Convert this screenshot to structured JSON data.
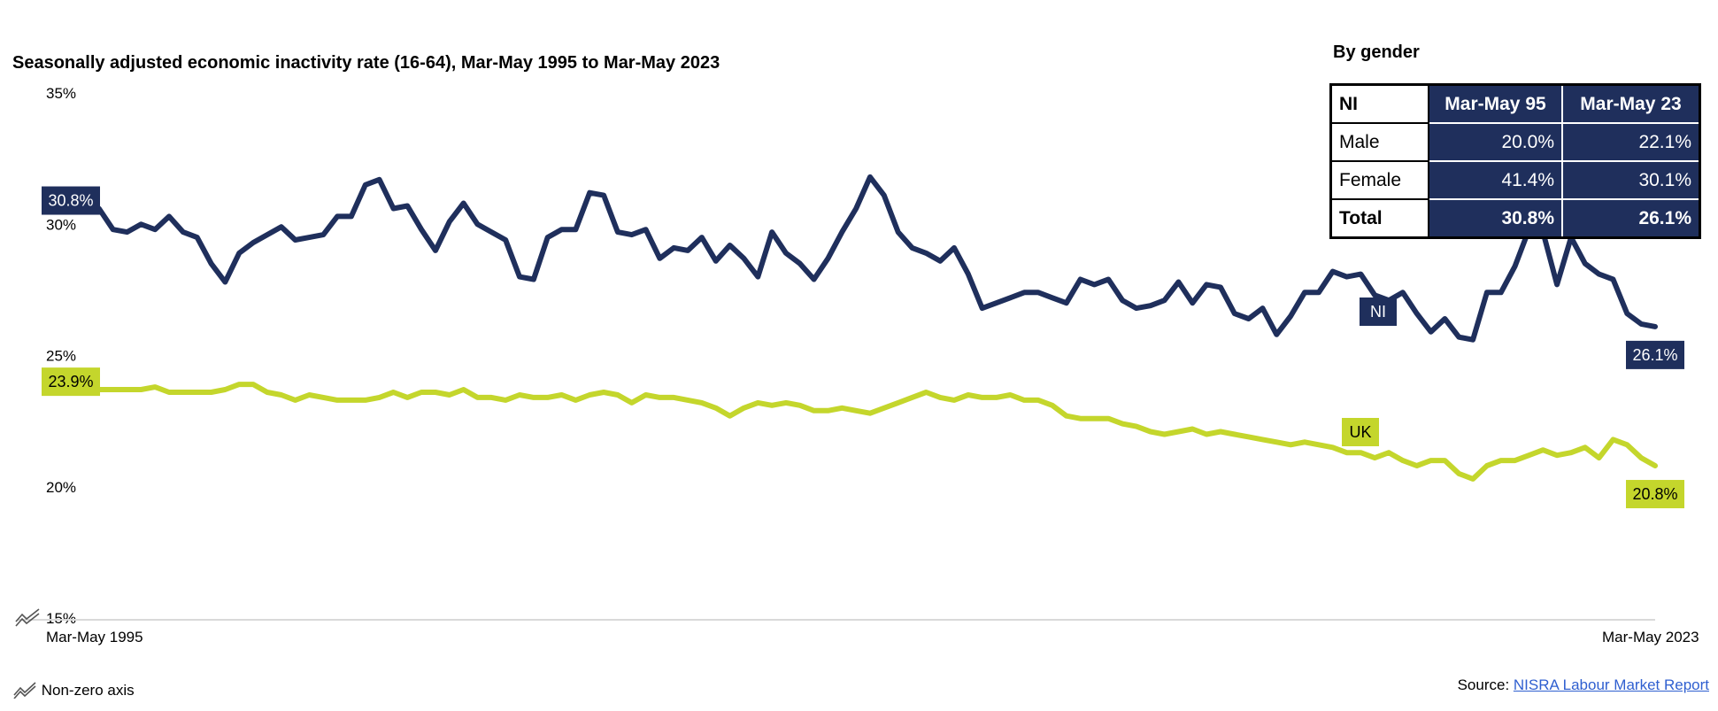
{
  "chart_data": {
    "type": "line",
    "title": "Seasonally adjusted economic inactivity rate (16-64), Mar-May 1995 to Mar-May 2023",
    "x_start_label": "Mar-May 1995",
    "x_end_label": "Mar-May 2023",
    "y_ticks": [
      "15%",
      "20%",
      "25%",
      "30%",
      "35%"
    ],
    "ylim": [
      15,
      35
    ],
    "non_zero_axis_note": "Non-zero axis",
    "colors": {
      "NI": "#1f2f5c",
      "UK": "#c4d62c"
    },
    "series": [
      {
        "name": "NI",
        "start_label": "30.8%",
        "end_label": "26.1%",
        "values": [
          30.8,
          30.6,
          29.8,
          29.7,
          30.0,
          29.8,
          30.3,
          29.7,
          29.5,
          28.5,
          27.8,
          28.9,
          29.3,
          29.6,
          29.9,
          29.4,
          29.5,
          29.6,
          30.3,
          30.3,
          31.5,
          31.7,
          30.6,
          30.7,
          29.8,
          29.0,
          30.1,
          30.8,
          30.0,
          29.7,
          29.4,
          28.0,
          27.9,
          29.5,
          29.8,
          29.8,
          31.2,
          31.1,
          29.7,
          29.6,
          29.8,
          28.7,
          29.1,
          29.0,
          29.5,
          28.6,
          29.2,
          28.7,
          28.0,
          29.7,
          28.9,
          28.5,
          27.9,
          28.7,
          29.7,
          30.6,
          31.8,
          31.1,
          29.7,
          29.1,
          28.9,
          28.6,
          29.1,
          28.1,
          26.8,
          27.0,
          27.2,
          27.4,
          27.4,
          27.2,
          27.0,
          27.9,
          27.7,
          27.9,
          27.1,
          26.8,
          26.9,
          27.1,
          27.8,
          27.0,
          27.7,
          27.6,
          26.6,
          26.4,
          26.8,
          25.8,
          26.5,
          27.4,
          27.4,
          28.2,
          28.0,
          28.1,
          27.3,
          27.1,
          27.4,
          26.6,
          25.9,
          26.4,
          25.7,
          25.6,
          27.4,
          27.4,
          28.4,
          29.8,
          29.7,
          27.7,
          29.5,
          28.5,
          28.1,
          27.9,
          26.6,
          26.2,
          26.1
        ]
      },
      {
        "name": "UK",
        "start_label": "23.9%",
        "end_label": "20.8%",
        "values": [
          23.9,
          23.7,
          23.7,
          23.7,
          23.7,
          23.8,
          23.6,
          23.6,
          23.6,
          23.6,
          23.7,
          23.9,
          23.9,
          23.6,
          23.5,
          23.3,
          23.5,
          23.4,
          23.3,
          23.3,
          23.3,
          23.4,
          23.6,
          23.4,
          23.6,
          23.6,
          23.5,
          23.7,
          23.4,
          23.4,
          23.3,
          23.5,
          23.4,
          23.4,
          23.5,
          23.3,
          23.5,
          23.6,
          23.5,
          23.2,
          23.5,
          23.4,
          23.4,
          23.3,
          23.2,
          23.0,
          22.7,
          23.0,
          23.2,
          23.1,
          23.2,
          23.1,
          22.9,
          22.9,
          23.0,
          22.9,
          22.8,
          23.0,
          23.2,
          23.4,
          23.6,
          23.4,
          23.3,
          23.5,
          23.4,
          23.4,
          23.5,
          23.3,
          23.3,
          23.1,
          22.7,
          22.6,
          22.6,
          22.6,
          22.4,
          22.3,
          22.1,
          22.0,
          22.1,
          22.2,
          22.0,
          22.1,
          22.0,
          21.9,
          21.8,
          21.7,
          21.6,
          21.7,
          21.6,
          21.5,
          21.3,
          21.3,
          21.1,
          21.3,
          21.0,
          20.8,
          21.0,
          21.0,
          20.5,
          20.3,
          20.8,
          21.0,
          21.0,
          21.2,
          21.4,
          21.2,
          21.3,
          21.5,
          21.1,
          21.8,
          21.6,
          21.1,
          20.8
        ]
      }
    ],
    "inline_labels": {
      "NI": "NI",
      "UK": "UK"
    }
  },
  "gender_table": {
    "title": "By gender",
    "headers": [
      "NI",
      "Mar-May 95",
      "Mar-May 23"
    ],
    "rows": [
      {
        "label": "Male",
        "v1": "20.0%",
        "v2": "22.1%"
      },
      {
        "label": "Female",
        "v1": "41.4%",
        "v2": "30.1%"
      },
      {
        "label": "Total",
        "v1": "30.8%",
        "v2": "26.1%"
      }
    ]
  },
  "source": {
    "prefix": "Source: ",
    "link_text": "NISRA Labour Market Report"
  }
}
